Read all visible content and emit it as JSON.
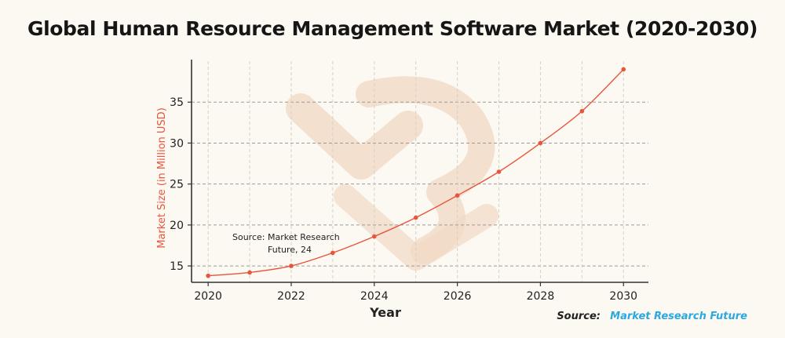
{
  "chart_data": {
    "type": "line",
    "title": "Global Human Resource Management Software Market (2020-2030)",
    "xlabel": "Year",
    "ylabel": "Market Size (in Million USD)",
    "x": [
      2020,
      2021,
      2022,
      2023,
      2024,
      2025,
      2026,
      2027,
      2028,
      2029,
      2030
    ],
    "y": [
      13.8,
      14.2,
      15.0,
      16.6,
      18.6,
      20.9,
      23.6,
      26.5,
      30.0,
      33.9,
      39.0
    ],
    "xlim": [
      2019.6,
      2030.6
    ],
    "ylim": [
      13,
      40
    ],
    "x_ticks": [
      "2020",
      "2022",
      "2024",
      "2026",
      "2028",
      "2030"
    ],
    "y_ticks": [
      "15",
      "20",
      "25",
      "30",
      "35"
    ],
    "grid": true,
    "line_color": "#e8553d",
    "annotation": {
      "line1": "Source:  Market Research",
      "line2": "Future, 24"
    }
  },
  "footer": {
    "source_label": "Source:",
    "source_value": "Market Research Future"
  },
  "watermark": {
    "color": "#f1dac4"
  }
}
